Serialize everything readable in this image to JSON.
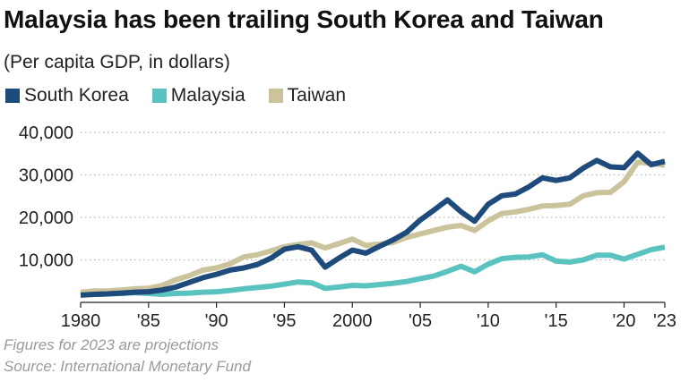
{
  "header": {
    "title": "Malaysia has been trailing South Korea and Taiwan",
    "subtitle": "(Per capita GDP, in dollars)"
  },
  "footer": {
    "note": "Figures for 2023 are projections",
    "source": "Source: International Monetary Fund"
  },
  "chart_data": {
    "type": "line",
    "title": "Malaysia has been trailing South Korea and Taiwan",
    "subtitle": "(Per capita GDP, in dollars)",
    "xlabel": "",
    "ylabel": "",
    "xlim": [
      1980,
      2023
    ],
    "ylim": [
      0,
      40000
    ],
    "grid": "horizontal dotted",
    "legend_position": "top-left",
    "x_tick_values": [
      1980,
      1985,
      1990,
      1995,
      2000,
      2005,
      2010,
      2015,
      2020,
      2023
    ],
    "x_tick_labels": [
      "1980",
      "'85",
      "'90",
      "'95",
      "2000",
      "'05",
      "'10",
      "'15",
      "'20",
      "'23"
    ],
    "y_tick_values": [
      10000,
      20000,
      30000,
      40000
    ],
    "y_tick_labels": [
      "10,000",
      "20,000",
      "30,000",
      "40,000"
    ],
    "x": [
      1980,
      1981,
      1982,
      1983,
      1984,
      1985,
      1986,
      1987,
      1988,
      1989,
      1990,
      1991,
      1992,
      1993,
      1994,
      1995,
      1996,
      1997,
      1998,
      1999,
      2000,
      2001,
      2002,
      2003,
      2004,
      2005,
      2006,
      2007,
      2008,
      2009,
      2010,
      2011,
      2012,
      2013,
      2014,
      2015,
      2016,
      2017,
      2018,
      2019,
      2020,
      2021,
      2022,
      2023
    ],
    "series": [
      {
        "name": "South Korea",
        "color": "#1f4a7c",
        "values": [
          1700,
          1900,
          2000,
          2200,
          2400,
          2500,
          2900,
          3600,
          4700,
          5800,
          6600,
          7600,
          8100,
          8900,
          10400,
          12500,
          13100,
          12300,
          8300,
          10400,
          12300,
          11600,
          13200,
          14700,
          16500,
          19400,
          21700,
          24100,
          21300,
          19100,
          23100,
          25100,
          25500,
          27200,
          29300,
          28700,
          29300,
          31600,
          33400,
          31900,
          31700,
          35100,
          32400,
          33200
        ]
      },
      {
        "name": "Malaysia",
        "color": "#5bc3bf",
        "values": [
          1800,
          1900,
          2000,
          2100,
          2300,
          2100,
          1900,
          2100,
          2200,
          2400,
          2500,
          2800,
          3200,
          3500,
          3800,
          4300,
          4800,
          4600,
          3300,
          3600,
          4000,
          3900,
          4200,
          4500,
          4900,
          5600,
          6200,
          7300,
          8500,
          7200,
          9000,
          10300,
          10600,
          10700,
          11200,
          9700,
          9500,
          10000,
          11100,
          11100,
          10200,
          11300,
          12400,
          13000
        ]
      },
      {
        "name": "Taiwan",
        "color": "#cbc39b",
        "values": [
          2400,
          2700,
          2700,
          2900,
          3200,
          3300,
          4000,
          5300,
          6300,
          7600,
          8100,
          9100,
          10700,
          11200,
          12100,
          13100,
          13600,
          14000,
          12800,
          13800,
          14900,
          13400,
          13700,
          14100,
          15300,
          16100,
          16900,
          17700,
          18100,
          16900,
          19200,
          20900,
          21300,
          21900,
          22700,
          22800,
          23100,
          25100,
          25800,
          25900,
          28400,
          33000,
          32700,
          32300
        ]
      }
    ]
  }
}
